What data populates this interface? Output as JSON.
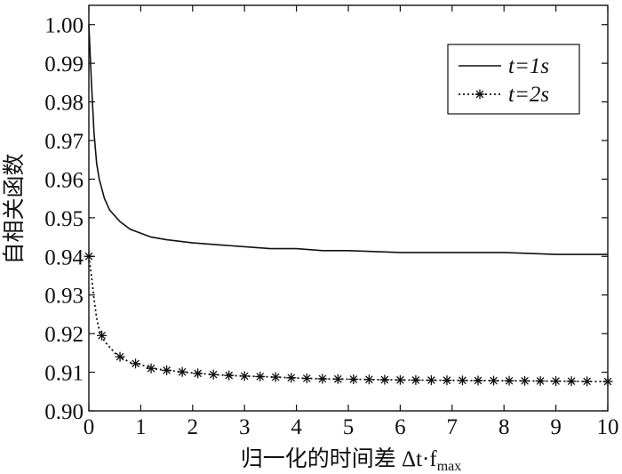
{
  "chart_data": {
    "type": "line",
    "xlabel": "归一化的时间差 Δt·f",
    "xlabel_subscript": "max",
    "ylabel": "自相关函数",
    "xlim": [
      0,
      10
    ],
    "ylim": [
      0.9,
      1.005
    ],
    "x_ticks": [
      "0",
      "1",
      "2",
      "3",
      "4",
      "5",
      "6",
      "7",
      "8",
      "9",
      "10"
    ],
    "y_ticks": [
      "0.90",
      "0.91",
      "0.92",
      "0.93",
      "0.94",
      "0.95",
      "0.96",
      "0.97",
      "0.98",
      "0.99",
      "1.00"
    ],
    "grid": false,
    "legend_position": "top-right",
    "series": [
      {
        "name": "t=1s",
        "style": "solid",
        "x": [
          0,
          0.05,
          0.1,
          0.15,
          0.2,
          0.3,
          0.4,
          0.5,
          0.6,
          0.8,
          1.0,
          1.2,
          1.5,
          2.0,
          2.5,
          3.0,
          3.5,
          4.0,
          4.5,
          5.0,
          6.0,
          7.0,
          8.0,
          9.0,
          10.0
        ],
        "y": [
          1.0,
          0.985,
          0.972,
          0.964,
          0.96,
          0.955,
          0.952,
          0.9505,
          0.949,
          0.947,
          0.946,
          0.945,
          0.9443,
          0.9435,
          0.943,
          0.9425,
          0.942,
          0.942,
          0.9415,
          0.9415,
          0.941,
          0.941,
          0.941,
          0.9405,
          0.9405
        ]
      },
      {
        "name": "t=2s",
        "style": "dotted-star",
        "x": [
          0,
          0.05,
          0.1,
          0.15,
          0.2,
          0.3,
          0.4,
          0.5,
          0.6,
          0.8,
          1.0,
          1.2,
          1.5,
          2.0,
          2.5,
          3.0,
          3.5,
          4.0,
          4.5,
          5.0,
          6.0,
          7.0,
          8.0,
          9.0,
          10.0
        ],
        "y": [
          0.94,
          0.935,
          0.929,
          0.924,
          0.921,
          0.918,
          0.9165,
          0.915,
          0.914,
          0.9125,
          0.912,
          0.911,
          0.9105,
          0.9098,
          0.9093,
          0.909,
          0.9088,
          0.9085,
          0.9083,
          0.9082,
          0.908,
          0.9079,
          0.9078,
          0.9077,
          0.9076
        ],
        "markers_x": [
          0,
          0.25,
          0.6,
          0.9,
          1.2,
          1.5,
          1.8,
          2.1,
          2.4,
          2.7,
          3.0,
          3.3,
          3.6,
          3.9,
          4.2,
          4.5,
          4.8,
          5.1,
          5.4,
          5.7,
          6.0,
          6.3,
          6.6,
          6.9,
          7.2,
          7.5,
          7.8,
          8.1,
          8.4,
          8.7,
          9.0,
          9.3,
          9.6,
          10.0
        ]
      }
    ]
  }
}
